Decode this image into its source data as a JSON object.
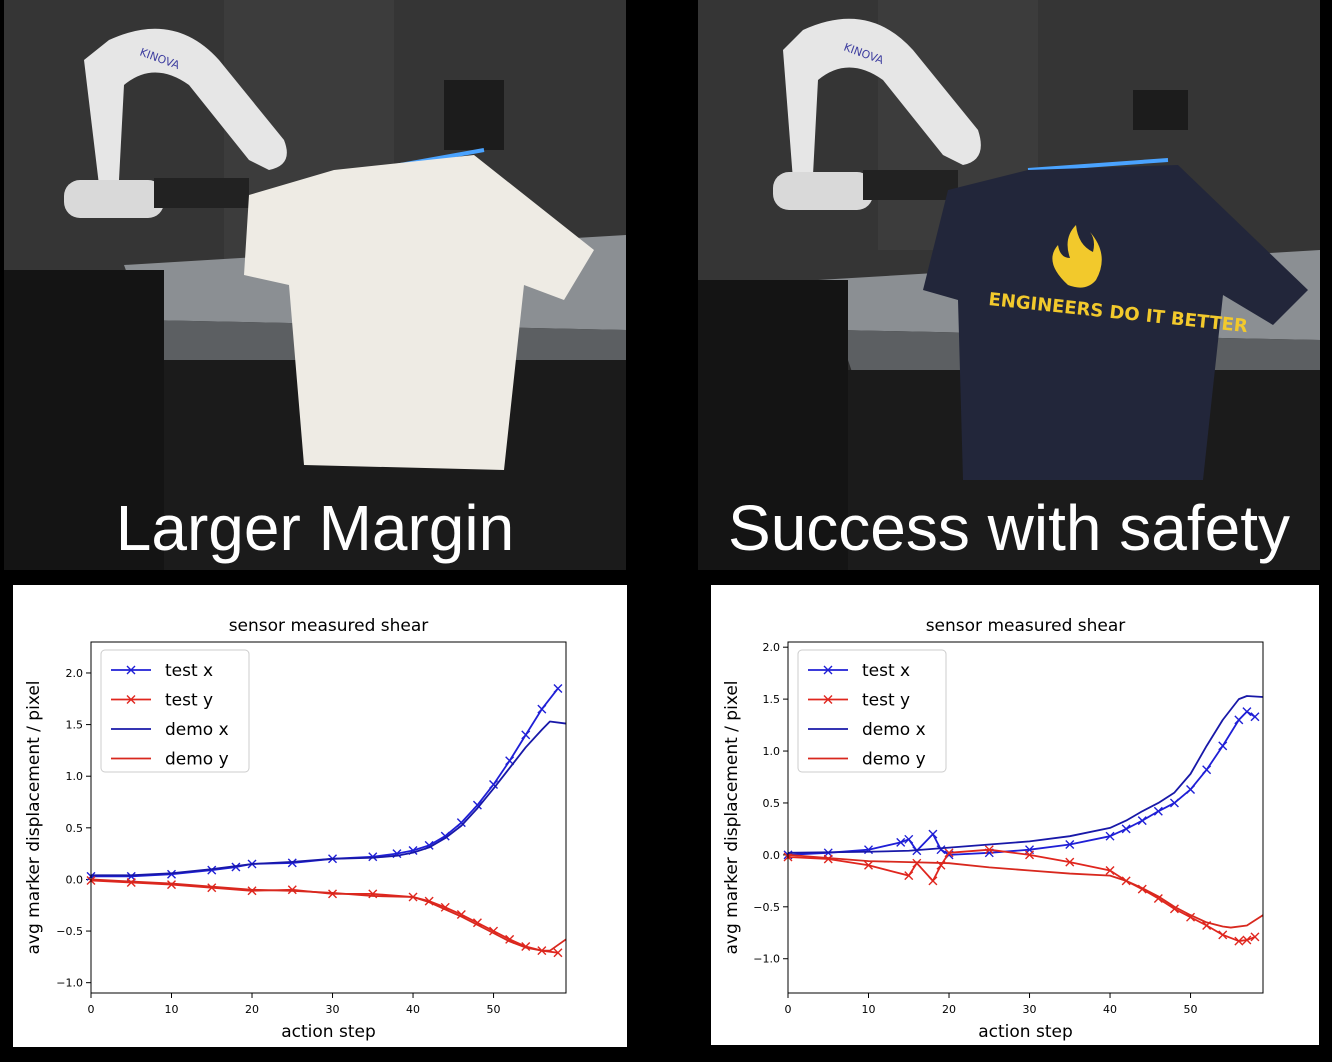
{
  "panels": [
    {
      "caption": "Larger Margin",
      "robot_brand": "KINOVA",
      "shirt_color": "#eeebe4",
      "shirt_print": ""
    },
    {
      "caption": "Success with safety",
      "robot_brand": "KINOVA",
      "shirt_color": "#22263a",
      "shirt_print": "ENGINEERS DO IT BETTER"
    }
  ],
  "colors": {
    "test_x": "#1f1fd6",
    "test_y": "#e0261e",
    "demo_x": "#1818a8",
    "demo_y": "#d8281e"
  },
  "chart_data": [
    {
      "type": "line",
      "title": "sensor measured shear",
      "xlabel": "action step",
      "ylabel": "avg marker displacement / pixel",
      "xlim": [
        0,
        59
      ],
      "ylim": [
        -1.1,
        2.3
      ],
      "xticks": [
        0,
        10,
        20,
        30,
        40,
        50
      ],
      "yticks": [
        -1.0,
        -0.5,
        0.0,
        0.5,
        1.0,
        1.5,
        2.0
      ],
      "ytick_labels": [
        "−1.0",
        "−0.5",
        "0.0",
        "0.5",
        "1.0",
        "1.5",
        "2.0"
      ],
      "legend": "top-left",
      "series": [
        {
          "name": "test x",
          "marker": "x",
          "points": [
            [
              0,
              0.03
            ],
            [
              5,
              0.03
            ],
            [
              10,
              0.05
            ],
            [
              15,
              0.09
            ],
            [
              18,
              0.12
            ],
            [
              20,
              0.15
            ],
            [
              25,
              0.16
            ],
            [
              30,
              0.2
            ],
            [
              35,
              0.22
            ],
            [
              38,
              0.25
            ],
            [
              40,
              0.28
            ],
            [
              42,
              0.33
            ],
            [
              44,
              0.42
            ],
            [
              46,
              0.55
            ],
            [
              48,
              0.72
            ],
            [
              50,
              0.92
            ],
            [
              52,
              1.15
            ],
            [
              54,
              1.4
            ],
            [
              56,
              1.65
            ],
            [
              58,
              1.85
            ]
          ]
        },
        {
          "name": "test y",
          "marker": "x",
          "points": [
            [
              0,
              -0.01
            ],
            [
              5,
              -0.03
            ],
            [
              10,
              -0.05
            ],
            [
              15,
              -0.08
            ],
            [
              20,
              -0.11
            ],
            [
              25,
              -0.1
            ],
            [
              30,
              -0.14
            ],
            [
              35,
              -0.14
            ],
            [
              40,
              -0.17
            ],
            [
              42,
              -0.21
            ],
            [
              44,
              -0.27
            ],
            [
              46,
              -0.34
            ],
            [
              48,
              -0.42
            ],
            [
              50,
              -0.5
            ],
            [
              52,
              -0.58
            ],
            [
              54,
              -0.65
            ],
            [
              56,
              -0.69
            ],
            [
              58,
              -0.71
            ]
          ]
        },
        {
          "name": "demo x",
          "marker": "",
          "points": [
            [
              0,
              0.04
            ],
            [
              5,
              0.04
            ],
            [
              10,
              0.06
            ],
            [
              15,
              0.1
            ],
            [
              20,
              0.15
            ],
            [
              25,
              0.17
            ],
            [
              30,
              0.2
            ],
            [
              35,
              0.21
            ],
            [
              38,
              0.23
            ],
            [
              40,
              0.26
            ],
            [
              42,
              0.31
            ],
            [
              44,
              0.4
            ],
            [
              46,
              0.52
            ],
            [
              48,
              0.69
            ],
            [
              50,
              0.88
            ],
            [
              52,
              1.08
            ],
            [
              54,
              1.28
            ],
            [
              56,
              1.45
            ],
            [
              57,
              1.53
            ],
            [
              59,
              1.51
            ]
          ]
        },
        {
          "name": "demo y",
          "marker": "",
          "points": [
            [
              0,
              0.0
            ],
            [
              5,
              -0.02
            ],
            [
              10,
              -0.04
            ],
            [
              15,
              -0.07
            ],
            [
              20,
              -0.1
            ],
            [
              25,
              -0.11
            ],
            [
              30,
              -0.13
            ],
            [
              35,
              -0.16
            ],
            [
              40,
              -0.17
            ],
            [
              42,
              -0.22
            ],
            [
              44,
              -0.29
            ],
            [
              46,
              -0.36
            ],
            [
              48,
              -0.44
            ],
            [
              50,
              -0.52
            ],
            [
              52,
              -0.6
            ],
            [
              54,
              -0.66
            ],
            [
              56,
              -0.69
            ],
            [
              57,
              -0.69
            ],
            [
              59,
              -0.58
            ]
          ]
        }
      ]
    },
    {
      "type": "line",
      "title": "sensor measured shear",
      "xlabel": "action step",
      "ylabel": "avg marker displacement / pixel",
      "xlim": [
        0,
        59
      ],
      "ylim": [
        -1.33,
        2.05
      ],
      "xticks": [
        0,
        10,
        20,
        30,
        40,
        50
      ],
      "yticks": [
        -1.0,
        -0.5,
        0.0,
        0.5,
        1.0,
        1.5,
        2.0
      ],
      "ytick_labels": [
        "−1.0",
        "−0.5",
        "0.0",
        "0.5",
        "1.0",
        "1.5",
        "2.0"
      ],
      "legend": "top-left",
      "series": [
        {
          "name": "test x",
          "marker": "x",
          "points": [
            [
              0,
              0.0
            ],
            [
              5,
              0.02
            ],
            [
              10,
              0.05
            ],
            [
              14,
              0.12
            ],
            [
              15,
              0.15
            ],
            [
              16,
              0.04
            ],
            [
              18,
              0.2
            ],
            [
              19,
              0.05
            ],
            [
              20,
              0.0
            ],
            [
              25,
              0.02
            ],
            [
              30,
              0.05
            ],
            [
              35,
              0.1
            ],
            [
              40,
              0.18
            ],
            [
              42,
              0.25
            ],
            [
              44,
              0.33
            ],
            [
              46,
              0.42
            ],
            [
              48,
              0.5
            ],
            [
              50,
              0.63
            ],
            [
              52,
              0.82
            ],
            [
              54,
              1.05
            ],
            [
              56,
              1.3
            ],
            [
              57,
              1.38
            ],
            [
              58,
              1.33
            ]
          ]
        },
        {
          "name": "test y",
          "marker": "x",
          "points": [
            [
              0,
              -0.02
            ],
            [
              5,
              -0.04
            ],
            [
              10,
              -0.1
            ],
            [
              15,
              -0.2
            ],
            [
              16,
              -0.08
            ],
            [
              18,
              -0.25
            ],
            [
              19,
              -0.1
            ],
            [
              20,
              0.02
            ],
            [
              25,
              0.05
            ],
            [
              30,
              0.0
            ],
            [
              35,
              -0.07
            ],
            [
              40,
              -0.15
            ],
            [
              42,
              -0.25
            ],
            [
              44,
              -0.33
            ],
            [
              46,
              -0.42
            ],
            [
              48,
              -0.52
            ],
            [
              50,
              -0.6
            ],
            [
              52,
              -0.68
            ],
            [
              54,
              -0.77
            ],
            [
              56,
              -0.83
            ],
            [
              57,
              -0.82
            ],
            [
              58,
              -0.79
            ]
          ]
        },
        {
          "name": "demo x",
          "marker": "",
          "points": [
            [
              0,
              0.02
            ],
            [
              10,
              0.03
            ],
            [
              15,
              0.04
            ],
            [
              20,
              0.07
            ],
            [
              25,
              0.1
            ],
            [
              30,
              0.13
            ],
            [
              35,
              0.18
            ],
            [
              40,
              0.26
            ],
            [
              42,
              0.33
            ],
            [
              44,
              0.42
            ],
            [
              46,
              0.5
            ],
            [
              48,
              0.6
            ],
            [
              50,
              0.78
            ],
            [
              52,
              1.05
            ],
            [
              54,
              1.3
            ],
            [
              56,
              1.5
            ],
            [
              57,
              1.53
            ],
            [
              59,
              1.52
            ]
          ]
        },
        {
          "name": "demo y",
          "marker": "",
          "points": [
            [
              0,
              0.0
            ],
            [
              5,
              -0.03
            ],
            [
              10,
              -0.06
            ],
            [
              15,
              -0.07
            ],
            [
              20,
              -0.08
            ],
            [
              25,
              -0.12
            ],
            [
              30,
              -0.15
            ],
            [
              35,
              -0.18
            ],
            [
              40,
              -0.2
            ],
            [
              42,
              -0.25
            ],
            [
              44,
              -0.32
            ],
            [
              46,
              -0.4
            ],
            [
              48,
              -0.5
            ],
            [
              50,
              -0.58
            ],
            [
              52,
              -0.65
            ],
            [
              54,
              -0.69
            ],
            [
              55,
              -0.7
            ],
            [
              57,
              -0.68
            ],
            [
              59,
              -0.58
            ]
          ]
        }
      ]
    }
  ]
}
